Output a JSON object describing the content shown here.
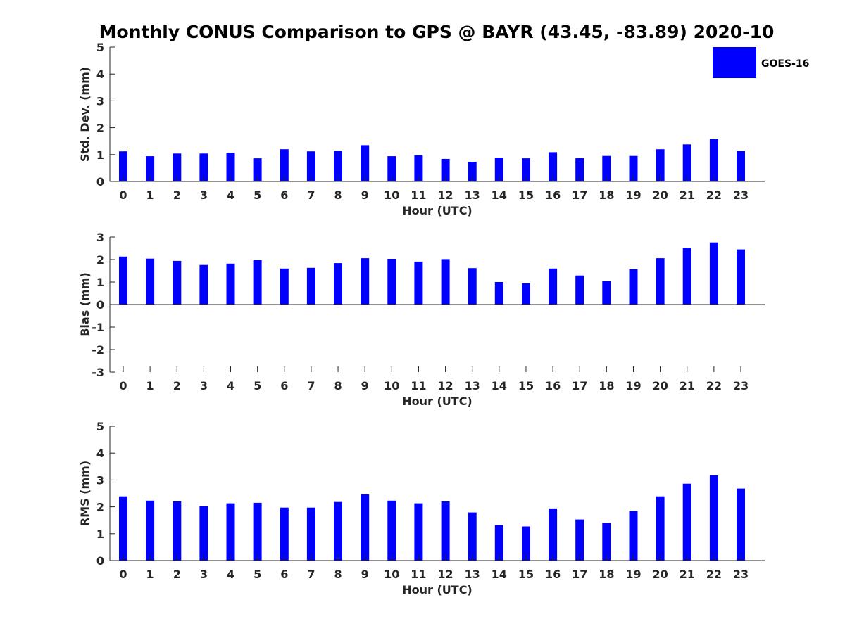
{
  "chart_data": {
    "title": "Monthly CONUS Comparison to GPS @ BAYR (43.45, -83.89) 2020-10",
    "legend": {
      "label": "GOES-16",
      "color": "#0000ff",
      "placement": "top-right"
    },
    "panels": [
      {
        "type": "bar",
        "ylabel": "Std. Dev. (mm)",
        "xlabel": "Hour (UTC)",
        "ylim": [
          0,
          5
        ],
        "yticks": [
          "0",
          "1",
          "2",
          "3",
          "4",
          "5"
        ],
        "categories": [
          "0",
          "1",
          "2",
          "3",
          "4",
          "5",
          "6",
          "7",
          "8",
          "9",
          "10",
          "11",
          "12",
          "13",
          "14",
          "15",
          "16",
          "17",
          "18",
          "19",
          "20",
          "21",
          "22",
          "23"
        ],
        "series": [
          {
            "name": "GOES-16",
            "values": [
              1.12,
              0.94,
              1.04,
              1.04,
              1.07,
              0.86,
              1.2,
              1.12,
              1.14,
              1.35,
              0.94,
              0.97,
              0.84,
              0.73,
              0.89,
              0.86,
              1.09,
              0.87,
              0.95,
              0.95,
              1.2,
              1.38,
              1.57,
              1.13
            ]
          }
        ]
      },
      {
        "type": "bar",
        "ylabel": "Bias (mm)",
        "xlabel": "Hour (UTC)",
        "ylim": [
          -3,
          3
        ],
        "yticks": [
          "-3",
          "-2",
          "-1",
          "0",
          "1",
          "2",
          "3"
        ],
        "categories": [
          "0",
          "1",
          "2",
          "3",
          "4",
          "5",
          "6",
          "7",
          "8",
          "9",
          "10",
          "11",
          "12",
          "13",
          "14",
          "15",
          "16",
          "17",
          "18",
          "19",
          "20",
          "21",
          "22",
          "23"
        ],
        "series": [
          {
            "name": "GOES-16",
            "values": [
              2.13,
              2.04,
              1.94,
              1.76,
              1.82,
              1.97,
              1.6,
              1.63,
              1.84,
              2.06,
              2.03,
              1.91,
              2.02,
              1.62,
              1.0,
              0.94,
              1.6,
              1.29,
              1.03,
              1.57,
              2.06,
              2.52,
              2.76,
              2.45
            ]
          }
        ]
      },
      {
        "type": "bar",
        "ylabel": "RMS (mm)",
        "xlabel": "Hour (UTC)",
        "ylim": [
          0,
          5
        ],
        "yticks": [
          "0",
          "1",
          "2",
          "3",
          "4",
          "5"
        ],
        "categories": [
          "0",
          "1",
          "2",
          "3",
          "4",
          "5",
          "6",
          "7",
          "8",
          "9",
          "10",
          "11",
          "12",
          "13",
          "14",
          "15",
          "16",
          "17",
          "18",
          "19",
          "20",
          "21",
          "22",
          "23"
        ],
        "series": [
          {
            "name": "GOES-16",
            "values": [
              2.39,
              2.23,
              2.2,
              2.02,
              2.13,
              2.15,
              1.97,
              1.97,
              2.18,
              2.46,
              2.23,
              2.13,
              2.2,
              1.79,
              1.32,
              1.27,
              1.94,
              1.53,
              1.4,
              1.84,
              2.39,
              2.86,
              3.17,
              2.68
            ]
          }
        ]
      }
    ]
  }
}
